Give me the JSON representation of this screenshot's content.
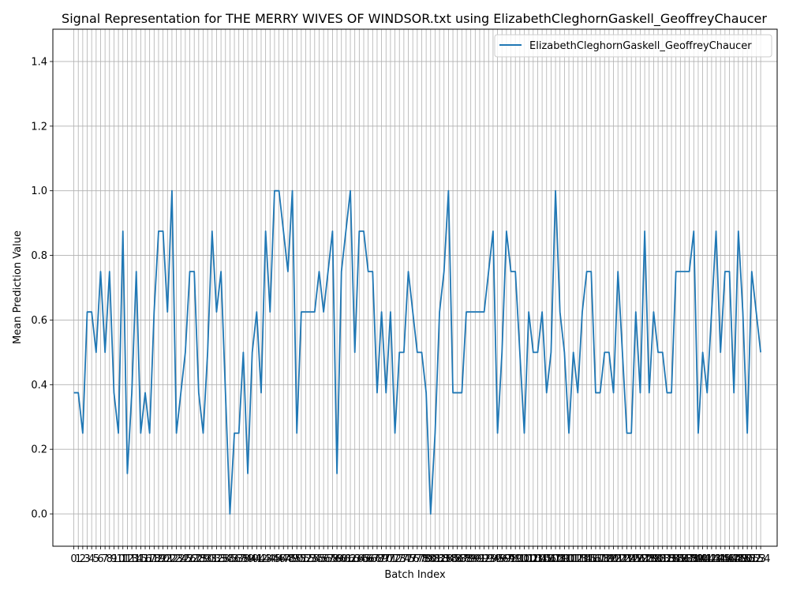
{
  "chart_data": {
    "type": "line",
    "title": "Signal Representation for THE MERRY WIVES OF WINDSOR.txt using ElizabethCleghornGaskell_GeoffreyChaucer",
    "xlabel": "Batch Index",
    "ylabel": "Mean Prediction Value",
    "ylim": [
      -0.1,
      1.5
    ],
    "xlim": [
      -4.7,
      157.7
    ],
    "grid": true,
    "legend_position": "top-right",
    "y_ticks": [
      0.0,
      0.2,
      0.4,
      0.6,
      0.8,
      1.0,
      1.2,
      1.4
    ],
    "y_tick_labels": [
      "0.0",
      "0.2",
      "0.4",
      "0.6",
      "0.8",
      "1.0",
      "1.2",
      "1.4"
    ],
    "series": [
      {
        "name": "ElizabethCleghornGaskell_GeoffreyChaucer",
        "color": "#1f77b4",
        "values": [
          0.375,
          0.375,
          0.25,
          0.625,
          0.625,
          0.5,
          0.75,
          0.5,
          0.75,
          0.375,
          0.25,
          0.875,
          0.125,
          0.375,
          0.75,
          0.25,
          0.375,
          0.25,
          0.625,
          0.875,
          0.875,
          0.625,
          1.0,
          0.25,
          0.375,
          0.5,
          0.75,
          0.75,
          0.375,
          0.25,
          0.5,
          0.875,
          0.625,
          0.75,
          0.375,
          0.0,
          0.25,
          0.25,
          0.5,
          0.125,
          0.5,
          0.625,
          0.375,
          0.875,
          0.625,
          1.0,
          1.0,
          0.875,
          0.75,
          1.0,
          0.25,
          0.625,
          0.625,
          0.625,
          0.625,
          0.75,
          0.625,
          0.75,
          0.875,
          0.125,
          0.75,
          0.875,
          1.0,
          0.5,
          0.875,
          0.875,
          0.75,
          0.75,
          0.375,
          0.625,
          0.375,
          0.625,
          0.25,
          0.5,
          0.5,
          0.75,
          0.625,
          0.5,
          0.5,
          0.375,
          0.0,
          0.25,
          0.625,
          0.75,
          1.0,
          0.375,
          0.375,
          0.375,
          0.625,
          0.625,
          0.625,
          0.625,
          0.625,
          0.75,
          0.875,
          0.25,
          0.5,
          0.875,
          0.75,
          0.75,
          0.5,
          0.25,
          0.625,
          0.5,
          0.5,
          0.625,
          0.375,
          0.5,
          1.0,
          0.625,
          0.5,
          0.25,
          0.5,
          0.375,
          0.625,
          0.75,
          0.75,
          0.375,
          0.375,
          0.5,
          0.5,
          0.375,
          0.75,
          0.5,
          0.25,
          0.25,
          0.625,
          0.375,
          0.875,
          0.375,
          0.625,
          0.5,
          0.5,
          0.375,
          0.375,
          0.75,
          0.75,
          0.75,
          0.75,
          0.875,
          0.25,
          0.5,
          0.375,
          0.625,
          0.875,
          0.5,
          0.75,
          0.75,
          0.375,
          0.875,
          0.625,
          0.25,
          0.75,
          0.625,
          0.5
        ]
      }
    ]
  }
}
